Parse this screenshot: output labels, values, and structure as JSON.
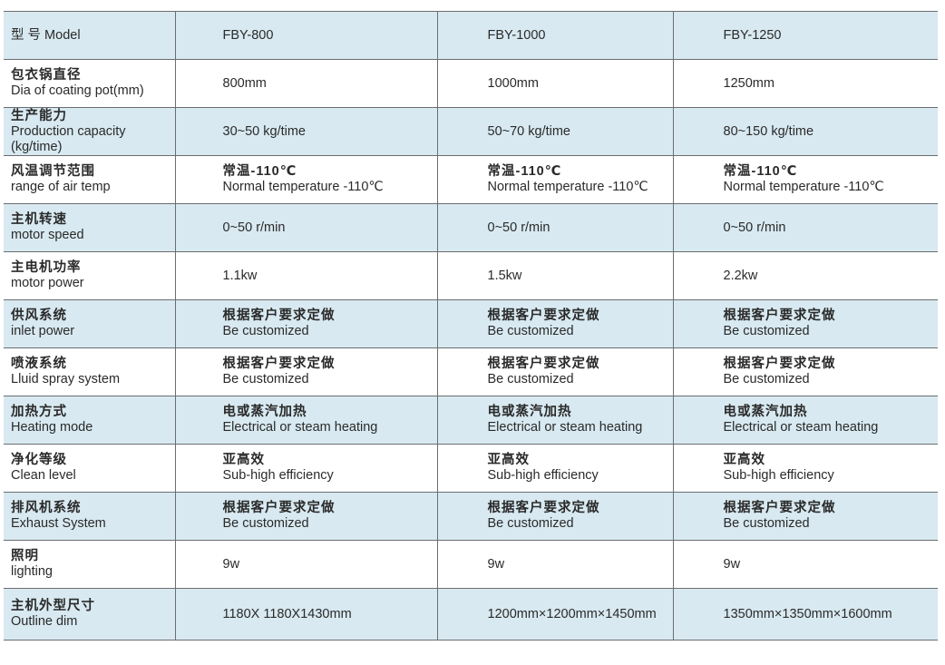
{
  "row_background_color": "#d8e9f1",
  "rows": [
    {
      "label": [
        "型  号 Model"
      ],
      "values": [
        [
          "FBY-800"
        ],
        [
          "FBY-1000"
        ],
        [
          "FBY-1250"
        ]
      ]
    },
    {
      "label": [
        "包衣锅直径",
        "Dia of coating pot(mm)"
      ],
      "values": [
        [
          "800mm"
        ],
        [
          "1000mm"
        ],
        [
          "1250mm"
        ]
      ]
    },
    {
      "label": [
        "生产能力",
        "Production capacity (kg/time)"
      ],
      "values": [
        [
          "30~50 kg/time"
        ],
        [
          "50~70 kg/time"
        ],
        [
          "80~150 kg/time"
        ]
      ]
    },
    {
      "label": [
        "风温调节范围",
        "range of air temp"
      ],
      "values": [
        [
          "常温-110℃",
          " Normal temperature -110℃"
        ],
        [
          "常温-110℃",
          " Normal temperature -110℃"
        ],
        [
          "常温-110℃",
          "Normal temperature -110℃"
        ]
      ]
    },
    {
      "label": [
        "主机转速",
        "motor speed"
      ],
      "values": [
        [
          "0~50 r/min"
        ],
        [
          "0~50 r/min"
        ],
        [
          "0~50 r/min"
        ]
      ]
    },
    {
      "label": [
        "主电机功率",
        "motor power"
      ],
      "values": [
        [
          "1.1kw"
        ],
        [
          "1.5kw"
        ],
        [
          "2.2kw"
        ]
      ]
    },
    {
      "label": [
        "供风系统",
        "inlet power"
      ],
      "values": [
        [
          "根据客户要求定做",
          "Be customized"
        ],
        [
          "根据客户要求定做",
          "Be customized"
        ],
        [
          "根据客户要求定做",
          "Be customized"
        ]
      ]
    },
    {
      "label": [
        "喷液系统",
        "Lluid spray system"
      ],
      "values": [
        [
          "根据客户要求定做",
          "Be customized"
        ],
        [
          "根据客户要求定做",
          "Be customized"
        ],
        [
          "根据客户要求定做",
          "Be customized"
        ]
      ]
    },
    {
      "label": [
        "加热方式",
        "Heating mode"
      ],
      "values": [
        [
          "电或蒸汽加热",
          "Electrical or steam heating"
        ],
        [
          "电或蒸汽加热",
          "Electrical or steam heating"
        ],
        [
          "电或蒸汽加热",
          "Electrical or steam heating"
        ]
      ]
    },
    {
      "label": [
        "净化等级",
        "Clean level"
      ],
      "values": [
        [
          "亚高效",
          "Sub-high efficiency"
        ],
        [
          "亚高效",
          "Sub-high efficiency"
        ],
        [
          "亚高效",
          "Sub-high efficiency"
        ]
      ]
    },
    {
      "label": [
        "排风机系统",
        "Exhaust System"
      ],
      "values": [
        [
          "根据客户要求定做",
          "Be customized"
        ],
        [
          "根据客户要求定做",
          "Be customized"
        ],
        [
          "根据客户要求定做",
          "Be customized"
        ]
      ]
    },
    {
      "label": [
        "照明",
        "lighting"
      ],
      "values": [
        [
          "9w"
        ],
        [
          "9w"
        ],
        [
          "9w"
        ]
      ]
    },
    {
      "label": [
        "主机外型尺寸",
        "Outline dim"
      ],
      "values": [
        [
          "1180X 1180X1430mm"
        ],
        [
          "1200mm×1200mm×1450mm"
        ],
        [
          "1350mm×1350mm×1600mm"
        ]
      ]
    }
  ]
}
